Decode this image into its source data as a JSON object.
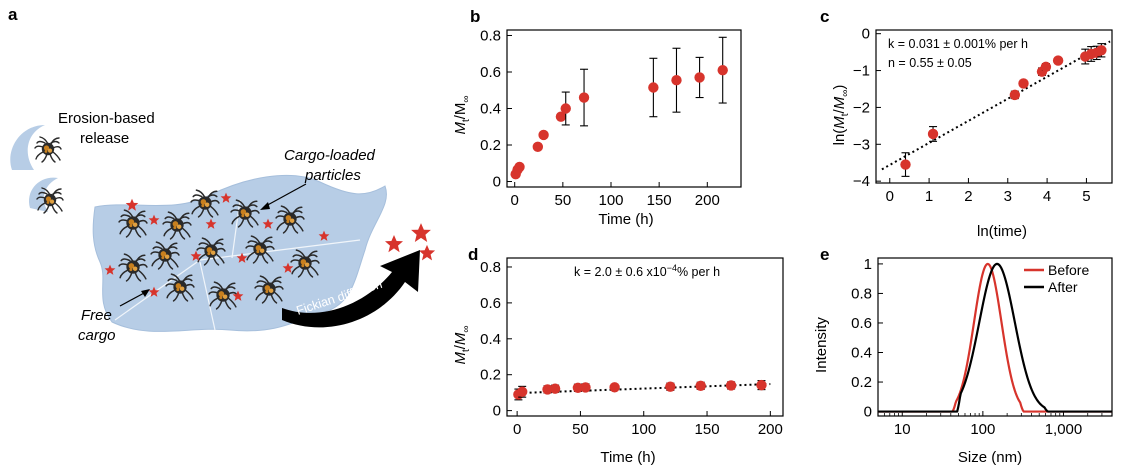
{
  "panel_letters": {
    "a": "a",
    "b": "b",
    "c": "c",
    "d": "d",
    "e": "e"
  },
  "schematic": {
    "erosion_label_1": "Erosion-based",
    "erosion_label_2": "release",
    "cargo_loaded_1": "Cargo-loaded",
    "cargo_loaded_2": "particles",
    "free_cargo_1": "Free",
    "free_cargo_2": "cargo",
    "fickian_label": "Fickian diffusion",
    "colors": {
      "film": "#b7cde6",
      "star": "#d7342c",
      "particle": "#2a2a2a",
      "particle_core": "#c8801f"
    }
  },
  "chart_data": [
    {
      "panel": "b",
      "type": "scatter",
      "xlabel": "Time (h)",
      "ylabel_main": "M",
      "ylabel_sub1": "t",
      "ylabel_mid": "/M",
      "ylabel_sub2": "∞",
      "xlim": [
        -8,
        235
      ],
      "ylim": [
        -0.03,
        0.83
      ],
      "xticks": [
        0,
        50,
        100,
        150,
        200
      ],
      "yticks": [
        0,
        0.2,
        0.4,
        0.6,
        0.8
      ],
      "ytick_labels": [
        "0",
        "0.2",
        "0.4",
        "0.6",
        "0.8"
      ],
      "color": "#d7342c",
      "points": [
        {
          "x": 1,
          "y": 0.04,
          "err": 0.0
        },
        {
          "x": 3,
          "y": 0.065,
          "err": 0.0
        },
        {
          "x": 5,
          "y": 0.08,
          "err": 0.0
        },
        {
          "x": 24,
          "y": 0.19,
          "err": 0.0
        },
        {
          "x": 30,
          "y": 0.255,
          "err": 0.0
        },
        {
          "x": 48,
          "y": 0.355,
          "err": 0.0
        },
        {
          "x": 53,
          "y": 0.4,
          "err": 0.09
        },
        {
          "x": 72,
          "y": 0.46,
          "err": 0.155
        },
        {
          "x": 144,
          "y": 0.515,
          "err": 0.16
        },
        {
          "x": 168,
          "y": 0.555,
          "err": 0.175
        },
        {
          "x": 192,
          "y": 0.57,
          "err": 0.11
        },
        {
          "x": 216,
          "y": 0.61,
          "err": 0.18
        }
      ]
    },
    {
      "panel": "c",
      "type": "scatter",
      "xlabel": "ln(time)",
      "ylabel": "ln(Mt/M∞)",
      "xlim": [
        -0.35,
        5.65
      ],
      "ylim": [
        -4.05,
        0.1
      ],
      "xticks": [
        0,
        1,
        2,
        3,
        4,
        5
      ],
      "yticks": [
        -4,
        -3,
        -2,
        -1,
        0
      ],
      "ytick_labels": [
        "−4",
        "−3",
        "−2",
        "−1",
        "0"
      ],
      "color": "#d7342c",
      "annotation_k": "k = 0.031 ± 0.001% per h",
      "annotation_n": "n = 0.55 ± 0.05",
      "fit": {
        "x0": -0.2,
        "y0": -3.68,
        "x1": 5.6,
        "y1": -0.21
      },
      "points": [
        {
          "x": 0.4,
          "y": -3.55,
          "err": 0.32
        },
        {
          "x": 1.1,
          "y": -2.72,
          "err": 0.2
        },
        {
          "x": 3.18,
          "y": -1.66,
          "err": 0.1
        },
        {
          "x": 3.4,
          "y": -1.35,
          "err": 0.08
        },
        {
          "x": 3.87,
          "y": -1.03,
          "err": 0.1
        },
        {
          "x": 3.97,
          "y": -0.9,
          "err": 0.09
        },
        {
          "x": 4.28,
          "y": -0.73,
          "err": 0.07
        },
        {
          "x": 4.97,
          "y": -0.62,
          "err": 0.2
        },
        {
          "x": 5.12,
          "y": -0.55,
          "err": 0.2
        },
        {
          "x": 5.26,
          "y": -0.52,
          "err": 0.18
        },
        {
          "x": 5.38,
          "y": -0.45,
          "err": 0.18
        }
      ]
    },
    {
      "panel": "d",
      "type": "scatter",
      "xlabel": "Time (h)",
      "xlim": [
        -8,
        210
      ],
      "ylim": [
        -0.03,
        0.85
      ],
      "xticks": [
        0,
        50,
        100,
        150,
        200
      ],
      "yticks": [
        0,
        0.2,
        0.4,
        0.6,
        0.8
      ],
      "ytick_labels": [
        "0",
        "0.2",
        "0.4",
        "0.6",
        "0.8"
      ],
      "color": "#d7342c",
      "annotation_k": "k = 2.0 ± 0.6 x10",
      "annotation_k_exp": "−4",
      "annotation_k_tail": "% per h",
      "fit": {
        "x0": -2,
        "y0": 0.097,
        "x1": 200,
        "y1": 0.148
      },
      "points": [
        {
          "x": 1,
          "y": 0.09,
          "err": 0.03
        },
        {
          "x": 4,
          "y": 0.105,
          "err": 0.03
        },
        {
          "x": 24,
          "y": 0.118,
          "err": 0.02
        },
        {
          "x": 30,
          "y": 0.122,
          "err": 0.02
        },
        {
          "x": 48,
          "y": 0.127,
          "err": 0.02
        },
        {
          "x": 54,
          "y": 0.129,
          "err": 0.02
        },
        {
          "x": 77,
          "y": 0.13,
          "err": 0.01
        },
        {
          "x": 121,
          "y": 0.133,
          "err": 0.02
        },
        {
          "x": 145,
          "y": 0.138,
          "err": 0.02
        },
        {
          "x": 169,
          "y": 0.14,
          "err": 0.02
        },
        {
          "x": 193,
          "y": 0.142,
          "err": 0.025
        }
      ]
    },
    {
      "panel": "e",
      "type": "line",
      "xlabel": "Size (nm)",
      "ylabel": "Intensity",
      "xscale": "log",
      "xlim": [
        5,
        4000
      ],
      "ylim": [
        -0.03,
        1.04
      ],
      "xticks": [
        10,
        100,
        1000
      ],
      "xtick_labels": [
        "10",
        "100",
        "1,000"
      ],
      "yticks": [
        0,
        0.2,
        0.4,
        0.6,
        0.8,
        1
      ],
      "ytick_labels": [
        "0",
        "0.2",
        "0.4",
        "0.6",
        "0.8",
        "1"
      ],
      "legend_position": "top-right",
      "series": [
        {
          "name": "Before",
          "color": "#d7342c",
          "center": 115,
          "width": 0.17,
          "start": 42,
          "end": 320
        },
        {
          "name": "After",
          "color": "#000000",
          "center": 150,
          "width": 0.22,
          "start": 48,
          "end": 640
        }
      ]
    }
  ]
}
